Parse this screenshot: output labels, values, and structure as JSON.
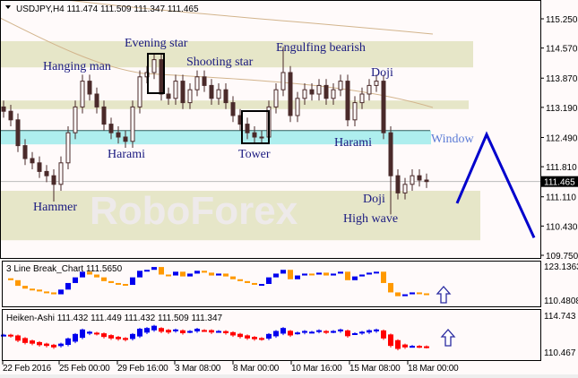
{
  "header": {
    "symbol": "USDJPY,H4",
    "ohlc": "111.474 111.509 111.347 111.465"
  },
  "colors": {
    "background": "#fffafa",
    "candle": "#4a2a2a",
    "zone": "#e6e6c8",
    "window_zone": "#aeeeee",
    "ma": "#d2b48c",
    "forecast": "#0000cc",
    "ha_up": "#0000ee",
    "ha_down": "#ff0000",
    "lb_up": "#0000ee",
    "lb_down": "#ff9900"
  },
  "chart_data": [
    {
      "type": "candlestick",
      "price_ticks": [
        "115.250",
        "114.570",
        "113.870",
        "113.190",
        "112.490",
        "111.810",
        "111.110",
        "110.430",
        "109.750"
      ],
      "ylim": [
        109.75,
        115.25
      ],
      "current_price": "111.465",
      "time_ticks": [
        "22 Feb 2016",
        "25 Feb 00:00",
        "29 Feb 16:00",
        "3 Mar 08:00",
        "8 Mar 00:00",
        "10 Mar 16:00",
        "15 Mar 08:00",
        "18 Mar 00:00"
      ],
      "closes": [
        113.1,
        112.9,
        112.3,
        112.0,
        111.9,
        111.7,
        111.6,
        111.4,
        111.9,
        112.6,
        113.2,
        113.8,
        113.5,
        113.2,
        112.8,
        112.6,
        112.5,
        112.4,
        113.2,
        113.9,
        114.0,
        114.3,
        113.5,
        113.4,
        113.8,
        113.3,
        113.6,
        113.9,
        113.7,
        113.4,
        113.6,
        113.3,
        113.0,
        112.8,
        112.6,
        112.5,
        112.5,
        113.2,
        113.6,
        114.0,
        113.0,
        113.4,
        113.6,
        113.5,
        113.7,
        113.4,
        113.6,
        113.8,
        112.9,
        113.3,
        113.5,
        113.7,
        113.8,
        112.6,
        111.6,
        111.2,
        111.4,
        111.6,
        111.5,
        111.465
      ],
      "zones": [
        {
          "from": 114.12,
          "to": 114.73,
          "kind": "resistance"
        },
        {
          "from": 113.15,
          "to": 113.35,
          "kind": "resistance"
        },
        {
          "from": 112.33,
          "to": 112.65,
          "kind": "window"
        },
        {
          "from": 110.1,
          "to": 111.25,
          "kind": "support"
        }
      ],
      "forecast": [
        110.96,
        112.56,
        110.16
      ],
      "patterns": {
        "hanging_man": "Hanging man",
        "evening_star": "Evening star",
        "shooting_star": "Shooting star",
        "engulfing_bearish": "Engulfing bearish",
        "doji_top": "Doji",
        "harami_1": "Harami",
        "tower": "Tower",
        "harami_2": "Harami",
        "window": "Window",
        "hammer": "Hammer",
        "doji_bottom": "Doji",
        "high_wave": "High wave"
      }
    },
    {
      "type": "line",
      "title": "3 Line Break_Chart 111.5650",
      "price_ticks": [
        "123.1363",
        "110.4808"
      ],
      "signal": "up-arrow"
    },
    {
      "type": "heiken-ashi",
      "title": "Heiken-Ashi 111.432 111.449 111.432 111.509 111.347",
      "price_ticks": [
        "114.743",
        "110.467"
      ],
      "signal": "up-arrow"
    }
  ],
  "watermark": "RoboForex"
}
